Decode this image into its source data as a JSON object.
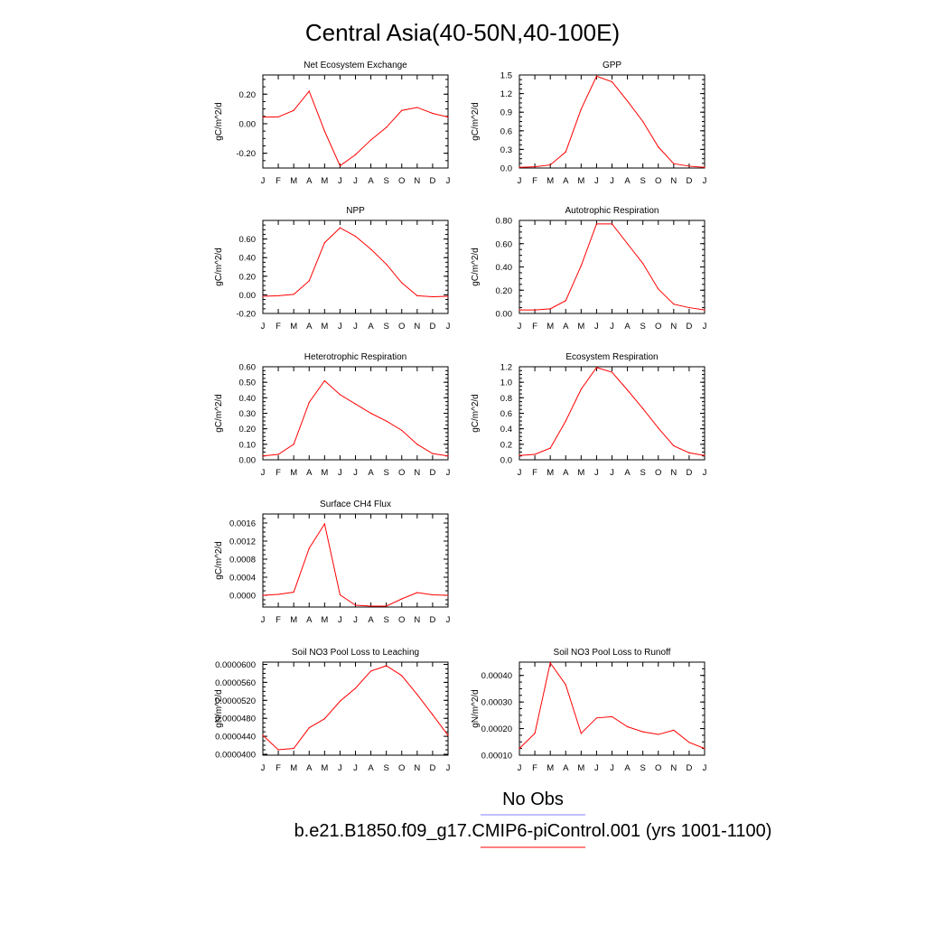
{
  "title": "Central Asia(40-50N,40-100E)",
  "colors": {
    "model_line": "#ff0000",
    "obs_line": "#8080ff"
  },
  "legend": {
    "obs_label": "No Obs",
    "model_label": "b.e21.B1850.f09_g17.CMIP6-piControl.001 (yrs 1001-1100)"
  },
  "chart_data": [
    {
      "type": "line",
      "title": "Net Ecosystem Exchange",
      "ylabel": "gC/m^2/d",
      "x": [
        "J",
        "F",
        "M",
        "A",
        "M",
        "J",
        "J",
        "A",
        "S",
        "O",
        "N",
        "D",
        "J"
      ],
      "series": [
        {
          "values": [
            0.045,
            0.046,
            0.09,
            0.22,
            -0.05,
            -0.285,
            -0.21,
            -0.11,
            -0.025,
            0.09,
            0.11,
            0.07,
            0.045
          ]
        }
      ],
      "ylim": [
        -0.3,
        0.33
      ],
      "yticks": [
        -0.2,
        0.0,
        0.2
      ],
      "ytick_labels": [
        "-0.20",
        "0.00",
        "0.20"
      ]
    },
    {
      "type": "line",
      "title": "GPP",
      "ylabel": "gC/m^2/d",
      "x": [
        "J",
        "F",
        "M",
        "A",
        "M",
        "J",
        "J",
        "A",
        "S",
        "O",
        "N",
        "D",
        "J"
      ],
      "series": [
        {
          "values": [
            0.01,
            0.02,
            0.05,
            0.26,
            0.95,
            1.48,
            1.39,
            1.08,
            0.75,
            0.34,
            0.07,
            0.03,
            0.01
          ]
        }
      ],
      "ylim": [
        0.0,
        1.5
      ],
      "yticks": [
        0.0,
        0.3,
        0.6,
        0.9,
        1.2,
        1.5
      ],
      "ytick_labels": [
        "0.0",
        "0.3",
        "0.6",
        "0.9",
        "1.2",
        "1.5"
      ]
    },
    {
      "type": "line",
      "title": "NPP",
      "ylabel": "gC/m^2/d",
      "x": [
        "J",
        "F",
        "M",
        "A",
        "M",
        "J",
        "J",
        "A",
        "S",
        "O",
        "N",
        "D",
        "J"
      ],
      "series": [
        {
          "values": [
            -0.015,
            -0.01,
            0.005,
            0.15,
            0.56,
            0.72,
            0.63,
            0.49,
            0.33,
            0.13,
            -0.01,
            -0.02,
            -0.015
          ]
        }
      ],
      "ylim": [
        -0.2,
        0.8
      ],
      "yticks": [
        -0.2,
        0.0,
        0.2,
        0.4,
        0.6
      ],
      "ytick_labels": [
        "-0.20",
        "0.00",
        "0.20",
        "0.40",
        "0.60"
      ]
    },
    {
      "type": "line",
      "title": "Autotrophic Respiration",
      "ylabel": "gC/m^2/d",
      "x": [
        "J",
        "F",
        "M",
        "A",
        "M",
        "J",
        "J",
        "A",
        "S",
        "O",
        "N",
        "D",
        "J"
      ],
      "series": [
        {
          "values": [
            0.03,
            0.03,
            0.04,
            0.11,
            0.41,
            0.77,
            0.77,
            0.6,
            0.43,
            0.21,
            0.08,
            0.05,
            0.03
          ]
        }
      ],
      "ylim": [
        0.0,
        0.8
      ],
      "yticks": [
        0.0,
        0.2,
        0.4,
        0.6,
        0.8
      ],
      "ytick_labels": [
        "0.00",
        "0.20",
        "0.40",
        "0.60",
        "0.80"
      ]
    },
    {
      "type": "line",
      "title": "Heterotrophic Respiration",
      "ylabel": "gC/m^2/d",
      "x": [
        "J",
        "F",
        "M",
        "A",
        "M",
        "J",
        "J",
        "A",
        "S",
        "O",
        "N",
        "D",
        "J"
      ],
      "series": [
        {
          "values": [
            0.025,
            0.035,
            0.1,
            0.37,
            0.51,
            0.42,
            0.36,
            0.3,
            0.25,
            0.19,
            0.1,
            0.04,
            0.025
          ]
        }
      ],
      "ylim": [
        0.0,
        0.6
      ],
      "yticks": [
        0.0,
        0.1,
        0.2,
        0.3,
        0.4,
        0.5,
        0.6
      ],
      "ytick_labels": [
        "0.00",
        "0.10",
        "0.20",
        "0.30",
        "0.40",
        "0.50",
        "0.60"
      ]
    },
    {
      "type": "line",
      "title": "Ecosystem Respiration",
      "ylabel": "gC/m^2/d",
      "x": [
        "J",
        "F",
        "M",
        "A",
        "M",
        "J",
        "J",
        "A",
        "S",
        "O",
        "N",
        "D",
        "J"
      ],
      "series": [
        {
          "values": [
            0.055,
            0.07,
            0.15,
            0.5,
            0.91,
            1.19,
            1.13,
            0.9,
            0.66,
            0.41,
            0.18,
            0.09,
            0.055
          ]
        }
      ],
      "ylim": [
        0.0,
        1.2
      ],
      "yticks": [
        0.0,
        0.2,
        0.4,
        0.6,
        0.8,
        1.0,
        1.2
      ],
      "ytick_labels": [
        "0.0",
        "0.2",
        "0.4",
        "0.6",
        "0.8",
        "1.0",
        "1.2"
      ]
    },
    {
      "type": "line",
      "title": "Surface CH4 Flux",
      "ylabel": "gC/m^2/d",
      "x": [
        "J",
        "F",
        "M",
        "A",
        "M",
        "J",
        "J",
        "A",
        "S",
        "O",
        "N",
        "D",
        "J"
      ],
      "series": [
        {
          "values": [
            0.0,
            2e-05,
            7e-05,
            0.00104,
            0.00158,
            1e-05,
            -0.00022,
            -0.00024,
            -0.00024,
            -8e-05,
            6e-05,
            1e-05,
            0.0
          ]
        }
      ],
      "ylim": [
        -0.00026,
        0.0018
      ],
      "yticks": [
        0.0,
        0.0004,
        0.0008,
        0.0012,
        0.0016
      ],
      "ytick_labels": [
        "0.0000",
        "0.0004",
        "0.0008",
        "0.0012",
        "0.0016"
      ]
    },
    {
      "type": "line",
      "title": "Soil NO3 Pool Loss to Leaching",
      "ylabel": "gN/m^2/d",
      "x": [
        "J",
        "F",
        "M",
        "A",
        "M",
        "J",
        "J",
        "A",
        "S",
        "O",
        "N",
        "D",
        "J"
      ],
      "series": [
        {
          "values": [
            4.42e-05,
            4.1e-05,
            4.13e-05,
            4.59e-05,
            4.79e-05,
            5.18e-05,
            5.47e-05,
            5.85e-05,
            5.97e-05,
            5.75e-05,
            5.33e-05,
            4.88e-05,
            4.42e-05
          ]
        }
      ],
      "ylim": [
        3.98e-05,
        6.05e-05
      ],
      "yticks": [
        4e-05,
        4.4e-05,
        4.8e-05,
        5.2e-05,
        5.6e-05,
        6e-05
      ],
      "ytick_labels": [
        "0.0000400",
        "0.0000440",
        "0.0000480",
        "0.0000520",
        "0.0000560",
        "0.0000600"
      ]
    },
    {
      "type": "line",
      "title": "Soil NO3 Pool Loss to Runoff",
      "ylabel": "gN/m^2/d",
      "x": [
        "J",
        "F",
        "M",
        "A",
        "M",
        "J",
        "J",
        "A",
        "S",
        "O",
        "N",
        "D",
        "J"
      ],
      "series": [
        {
          "values": [
            0.000125,
            0.000182,
            0.000447,
            0.000365,
            0.000182,
            0.00024,
            0.000245,
            0.000207,
            0.000188,
            0.000178,
            0.000194,
            0.000148,
            0.000125
          ]
        }
      ],
      "ylim": [
        0.0001,
        0.00045
      ],
      "yticks": [
        0.0001,
        0.0002,
        0.0003,
        0.0004
      ],
      "ytick_labels": [
        "0.00010",
        "0.00020",
        "0.00030",
        "0.00040"
      ]
    }
  ]
}
